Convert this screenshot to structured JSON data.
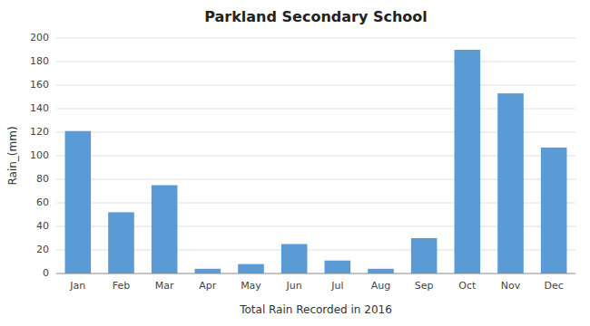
{
  "chart_data": {
    "type": "bar",
    "title": "Parkland Secondary School",
    "xlabel": "Total Rain Recorded in 2016",
    "ylabel": "Rain_(mm)",
    "categories": [
      "Jan",
      "Feb",
      "Mar",
      "Apr",
      "May",
      "Jun",
      "Jul",
      "Aug",
      "Sep",
      "Oct",
      "Nov",
      "Dec"
    ],
    "values": [
      121,
      52,
      75,
      4,
      8,
      25,
      11,
      4,
      30,
      190,
      153,
      107
    ],
    "color": "#5B9BD5",
    "ylim": [
      0,
      200
    ],
    "yticks": [
      0,
      20,
      40,
      60,
      80,
      100,
      120,
      140,
      160,
      180,
      200
    ],
    "grid": true
  }
}
